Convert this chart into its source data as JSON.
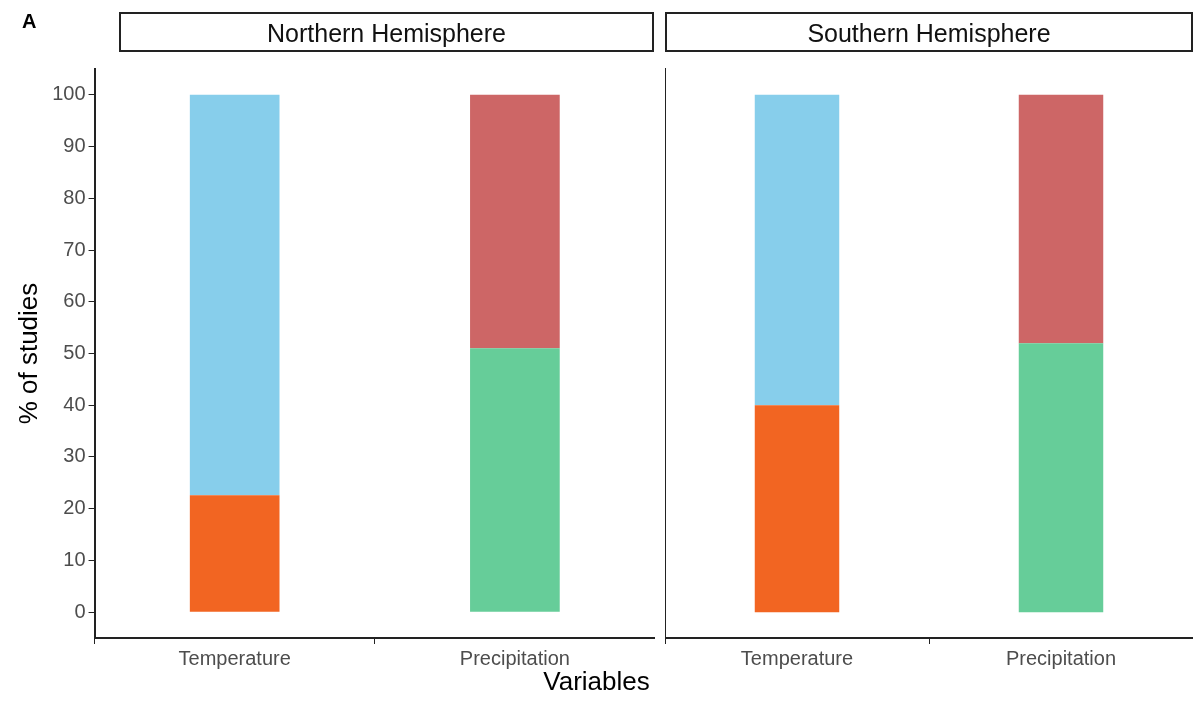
{
  "chart_data": [
    {
      "type": "bar",
      "title": "Northern Hemisphere",
      "xlabel": "Variables",
      "ylabel": "% of studies",
      "annotations": [
        "A"
      ],
      "categories": [
        "Temperature",
        "Precipitation"
      ],
      "stacked": true,
      "grid": false,
      "legend": false,
      "ylim": [
        -5,
        105
      ],
      "yticks": [
        0,
        10,
        20,
        30,
        40,
        50,
        60,
        70,
        80,
        90,
        100
      ],
      "series": [
        {
          "color": "#f26522",
          "values": [
            22.6,
            null
          ]
        },
        {
          "color": "#87ceeb",
          "values": [
            77.4,
            null
          ]
        },
        {
          "color": "#66cd99",
          "values": [
            null,
            51
          ]
        },
        {
          "color": "#cd6666",
          "values": [
            null,
            49
          ]
        }
      ]
    },
    {
      "type": "bar",
      "title": "Southern Hemisphere",
      "categories": [
        "Temperature",
        "Precipitation"
      ],
      "stacked": true,
      "grid": false,
      "legend": false,
      "tick_labels": "x",
      "ylim": [
        -5,
        105
      ],
      "yticks": [
        0,
        10,
        20,
        30,
        40,
        50,
        60,
        70,
        80,
        90,
        100
      ],
      "series": [
        {
          "color": "#f26522",
          "values": [
            40,
            null
          ]
        },
        {
          "color": "#87ceeb",
          "values": [
            60,
            null
          ]
        },
        {
          "color": "#66cd99",
          "values": [
            null,
            52
          ]
        },
        {
          "color": "#cd6666",
          "values": [
            null,
            48
          ]
        }
      ]
    }
  ]
}
